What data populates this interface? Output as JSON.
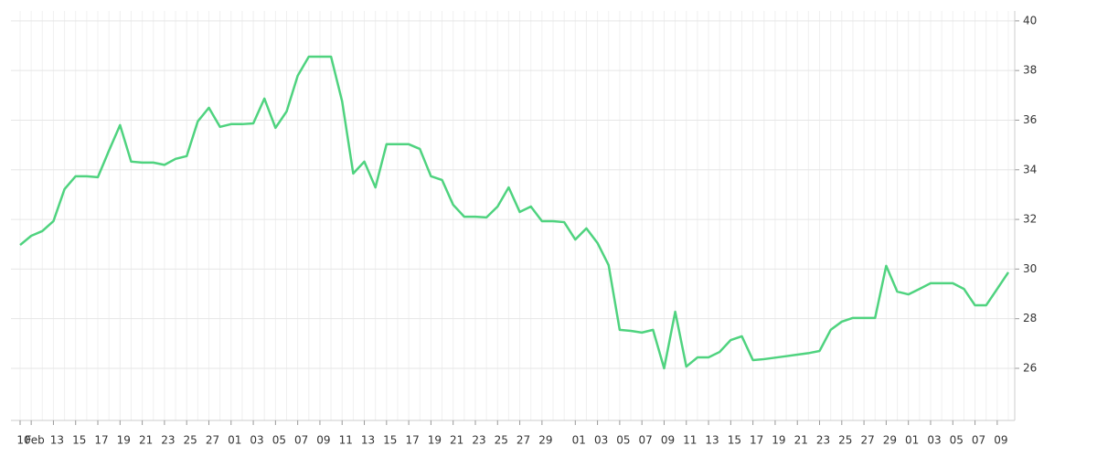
{
  "chart_data": {
    "type": "line",
    "categories": [
      "10",
      "Feb",
      null,
      "13",
      null,
      "15",
      null,
      "17",
      null,
      "19",
      null,
      "21",
      null,
      "23",
      null,
      "25",
      null,
      "27",
      null,
      "01",
      null,
      "03",
      null,
      "05",
      null,
      "07",
      null,
      "09",
      null,
      "11",
      null,
      "13",
      null,
      "15",
      null,
      "17",
      null,
      "19",
      null,
      "21",
      null,
      "23",
      null,
      "25",
      null,
      "27",
      null,
      "29",
      null,
      null,
      "01",
      null,
      "03",
      null,
      "05",
      null,
      "07",
      null,
      "09",
      null,
      "11",
      null,
      "13",
      null,
      "15",
      null,
      "17",
      null,
      "19",
      null,
      "21",
      null,
      "23",
      null,
      "25",
      null,
      "27",
      null,
      "29",
      null,
      "01",
      null,
      "03",
      null,
      "05",
      null,
      "07",
      null,
      "09",
      null
    ],
    "series": [
      {
        "color": "#4fd37f",
        "values": [
          30.97,
          31.34,
          31.53,
          31.93,
          33.22,
          33.74,
          33.74,
          33.7,
          34.77,
          35.8,
          34.33,
          34.29,
          34.29,
          34.2,
          34.44,
          34.55,
          35.95,
          36.5,
          35.73,
          35.84,
          35.84,
          35.87,
          36.87,
          35.69,
          36.35,
          37.79,
          38.56,
          38.56,
          38.56,
          36.76,
          33.85,
          34.33,
          33.29,
          35.03,
          35.03,
          35.03,
          34.84,
          33.74,
          33.59,
          32.59,
          32.11,
          32.11,
          32.08,
          32.52,
          33.29,
          32.3,
          32.52,
          31.93,
          31.93,
          31.89,
          31.19,
          31.64,
          31.05,
          30.16,
          27.55,
          27.51,
          27.44,
          27.55,
          26.0,
          28.28,
          26.07,
          26.44,
          26.44,
          26.66,
          27.14,
          27.29,
          26.33,
          26.37,
          26.43,
          26.49,
          26.55,
          26.61,
          26.7,
          27.55,
          27.88,
          28.03,
          28.03,
          28.03,
          30.13,
          29.09,
          28.98,
          29.2,
          29.43,
          29.43,
          29.43,
          29.2,
          28.54,
          28.54,
          29.2,
          29.87
        ]
      }
    ],
    "ylim": [
      23.9,
      40.4
    ],
    "yticks": [
      26,
      28,
      30,
      32,
      34,
      36,
      38,
      40
    ],
    "grid": true
  }
}
